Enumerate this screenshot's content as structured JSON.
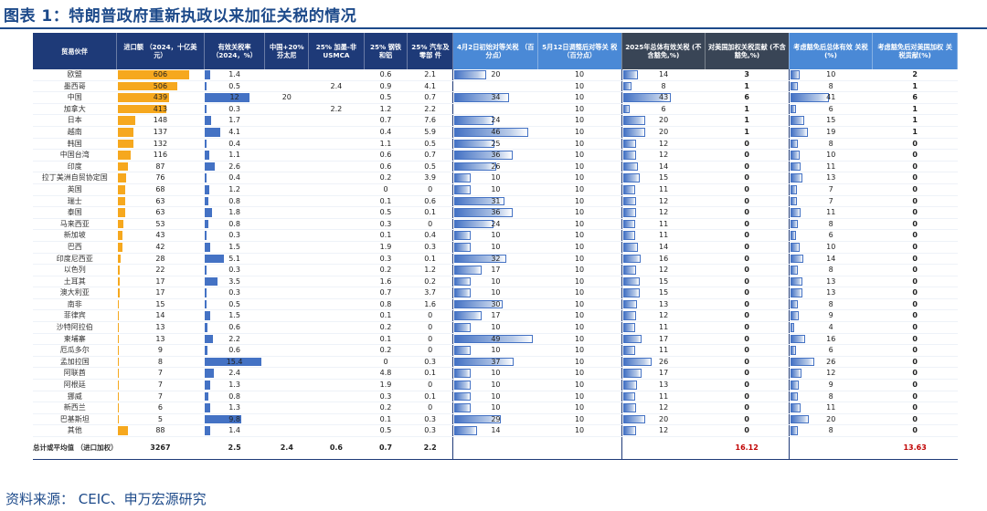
{
  "title": "图表 1：特朗普政府重新执政以来加征关税的情况",
  "source": "资料来源：   CEIC、申万宏源研究",
  "colors": {
    "header": "#1e3a78",
    "header_highlight": "#4a89d6",
    "header_dark": "#394556",
    "import_bar": "#f6a81e",
    "rate_bar": "#4472c4",
    "red_total": "#c00000"
  },
  "headers": [
    "贸易伙伴",
    "进口额 （2024，十亿美元）",
    "有效关税率 （2024，%）",
    "中国+20% 芬太尼",
    "25% 加墨-非 USMCA",
    "25% 钢铁 和铝",
    "25% 汽车及零部 件",
    "4月2日初始对等关税 （百分点）",
    "5月12日调整后对等关 税（百分点）",
    "2025年总体有效关税 (不含豁免,%)",
    "对美国加权关税贡献 (不含豁免,%)",
    "考虑豁免后总体有效 关税(%)",
    "考虑豁免后对美国加权 关税贡献(%)"
  ],
  "rows": [
    {
      "name": "欧盟",
      "imp": "606",
      "eff": "1.4",
      "cn": "",
      "mx": "",
      "st": "0.6",
      "au": "2.1",
      "ini": "20",
      "adj": "10",
      "tot": "14",
      "con": "3",
      "texe": "10",
      "cexe": "2"
    },
    {
      "name": "墨西哥",
      "imp": "506",
      "eff": "0.5",
      "cn": "",
      "mx": "2.4",
      "st": "0.9",
      "au": "4.1",
      "ini": "",
      "adj": "10",
      "tot": "8",
      "con": "1",
      "texe": "8",
      "cexe": "1"
    },
    {
      "name": "中国",
      "imp": "439",
      "eff": "12",
      "cn": "20",
      "mx": "",
      "st": "0.5",
      "au": "0.7",
      "ini": "34",
      "adj": "10",
      "tot": "43",
      "con": "6",
      "texe": "41",
      "cexe": "6"
    },
    {
      "name": "加拿大",
      "imp": "413",
      "eff": "0.3",
      "cn": "",
      "mx": "2.2",
      "st": "1.2",
      "au": "2.2",
      "ini": "",
      "adj": "10",
      "tot": "6",
      "con": "1",
      "texe": "6",
      "cexe": "1"
    },
    {
      "name": "日本",
      "imp": "148",
      "eff": "1.7",
      "cn": "",
      "mx": "",
      "st": "0.7",
      "au": "7.6",
      "ini": "24",
      "adj": "10",
      "tot": "20",
      "con": "1",
      "texe": "15",
      "cexe": "1"
    },
    {
      "name": "越南",
      "imp": "137",
      "eff": "4.1",
      "cn": "",
      "mx": "",
      "st": "0.4",
      "au": "5.9",
      "ini": "46",
      "adj": "10",
      "tot": "20",
      "con": "1",
      "texe": "19",
      "cexe": "1"
    },
    {
      "name": "韩国",
      "imp": "132",
      "eff": "0.4",
      "cn": "",
      "mx": "",
      "st": "1.1",
      "au": "0.5",
      "ini": "25",
      "adj": "10",
      "tot": "12",
      "con": "0",
      "texe": "8",
      "cexe": "0"
    },
    {
      "name": "中国台湾",
      "imp": "116",
      "eff": "1.1",
      "cn": "",
      "mx": "",
      "st": "0.6",
      "au": "0.7",
      "ini": "36",
      "adj": "10",
      "tot": "12",
      "con": "0",
      "texe": "10",
      "cexe": "0"
    },
    {
      "name": "印度",
      "imp": "87",
      "eff": "2.6",
      "cn": "",
      "mx": "",
      "st": "0.6",
      "au": "0.5",
      "ini": "26",
      "adj": "10",
      "tot": "14",
      "con": "0",
      "texe": "11",
      "cexe": "0"
    },
    {
      "name": "拉丁美洲自贸协定国",
      "imp": "76",
      "eff": "0.4",
      "cn": "",
      "mx": "",
      "st": "0.2",
      "au": "3.9",
      "ini": "10",
      "adj": "10",
      "tot": "15",
      "con": "0",
      "texe": "13",
      "cexe": "0"
    },
    {
      "name": "英国",
      "imp": "68",
      "eff": "1.2",
      "cn": "",
      "mx": "",
      "st": "0",
      "au": "0",
      "ini": "10",
      "adj": "10",
      "tot": "11",
      "con": "0",
      "texe": "7",
      "cexe": "0"
    },
    {
      "name": "瑞士",
      "imp": "63",
      "eff": "0.8",
      "cn": "",
      "mx": "",
      "st": "0.1",
      "au": "0.6",
      "ini": "31",
      "adj": "10",
      "tot": "12",
      "con": "0",
      "texe": "7",
      "cexe": "0"
    },
    {
      "name": "泰国",
      "imp": "63",
      "eff": "1.8",
      "cn": "",
      "mx": "",
      "st": "0.5",
      "au": "0.1",
      "ini": "36",
      "adj": "10",
      "tot": "12",
      "con": "0",
      "texe": "11",
      "cexe": "0"
    },
    {
      "name": "马来西亚",
      "imp": "53",
      "eff": "0.8",
      "cn": "",
      "mx": "",
      "st": "0.3",
      "au": "0",
      "ini": "24",
      "adj": "10",
      "tot": "11",
      "con": "0",
      "texe": "8",
      "cexe": "0"
    },
    {
      "name": "新加坡",
      "imp": "43",
      "eff": "0.3",
      "cn": "",
      "mx": "",
      "st": "0.1",
      "au": "0.4",
      "ini": "10",
      "adj": "10",
      "tot": "11",
      "con": "0",
      "texe": "6",
      "cexe": "0"
    },
    {
      "name": "巴西",
      "imp": "42",
      "eff": "1.5",
      "cn": "",
      "mx": "",
      "st": "1.9",
      "au": "0.3",
      "ini": "10",
      "adj": "10",
      "tot": "14",
      "con": "0",
      "texe": "10",
      "cexe": "0"
    },
    {
      "name": "印度尼西亚",
      "imp": "28",
      "eff": "5.1",
      "cn": "",
      "mx": "",
      "st": "0.3",
      "au": "0.1",
      "ini": "32",
      "adj": "10",
      "tot": "16",
      "con": "0",
      "texe": "14",
      "cexe": "0"
    },
    {
      "name": "以色列",
      "imp": "22",
      "eff": "0.3",
      "cn": "",
      "mx": "",
      "st": "0.2",
      "au": "1.2",
      "ini": "17",
      "adj": "10",
      "tot": "12",
      "con": "0",
      "texe": "8",
      "cexe": "0"
    },
    {
      "name": "土耳其",
      "imp": "17",
      "eff": "3.5",
      "cn": "",
      "mx": "",
      "st": "1.6",
      "au": "0.2",
      "ini": "10",
      "adj": "10",
      "tot": "15",
      "con": "0",
      "texe": "13",
      "cexe": "0"
    },
    {
      "name": "澳大利亚",
      "imp": "17",
      "eff": "0.3",
      "cn": "",
      "mx": "",
      "st": "0.7",
      "au": "3.7",
      "ini": "10",
      "adj": "10",
      "tot": "15",
      "con": "0",
      "texe": "13",
      "cexe": "0"
    },
    {
      "name": "南非",
      "imp": "15",
      "eff": "0.5",
      "cn": "",
      "mx": "",
      "st": "0.8",
      "au": "1.6",
      "ini": "30",
      "adj": "10",
      "tot": "13",
      "con": "0",
      "texe": "8",
      "cexe": "0"
    },
    {
      "name": "菲律宾",
      "imp": "14",
      "eff": "1.5",
      "cn": "",
      "mx": "",
      "st": "0.1",
      "au": "0",
      "ini": "17",
      "adj": "10",
      "tot": "12",
      "con": "0",
      "texe": "9",
      "cexe": "0"
    },
    {
      "name": "沙特阿拉伯",
      "imp": "13",
      "eff": "0.6",
      "cn": "",
      "mx": "",
      "st": "0.2",
      "au": "0",
      "ini": "10",
      "adj": "10",
      "tot": "11",
      "con": "0",
      "texe": "4",
      "cexe": "0"
    },
    {
      "name": "柬埔寨",
      "imp": "13",
      "eff": "2.2",
      "cn": "",
      "mx": "",
      "st": "0.1",
      "au": "0",
      "ini": "49",
      "adj": "10",
      "tot": "17",
      "con": "0",
      "texe": "16",
      "cexe": "0"
    },
    {
      "name": "厄瓜多尔",
      "imp": "9",
      "eff": "0.6",
      "cn": "",
      "mx": "",
      "st": "0.2",
      "au": "0",
      "ini": "10",
      "adj": "10",
      "tot": "11",
      "con": "0",
      "texe": "6",
      "cexe": "0"
    },
    {
      "name": "孟加拉国",
      "imp": "8",
      "eff": "15.4",
      "cn": "",
      "mx": "",
      "st": "0",
      "au": "0.3",
      "ini": "37",
      "adj": "10",
      "tot": "26",
      "con": "0",
      "texe": "26",
      "cexe": "0"
    },
    {
      "name": "阿联酋",
      "imp": "7",
      "eff": "2.4",
      "cn": "",
      "mx": "",
      "st": "4.8",
      "au": "0.1",
      "ini": "10",
      "adj": "10",
      "tot": "17",
      "con": "0",
      "texe": "12",
      "cexe": "0"
    },
    {
      "name": "阿根廷",
      "imp": "7",
      "eff": "1.3",
      "cn": "",
      "mx": "",
      "st": "1.9",
      "au": "0",
      "ini": "10",
      "adj": "10",
      "tot": "13",
      "con": "0",
      "texe": "9",
      "cexe": "0"
    },
    {
      "name": "挪威",
      "imp": "7",
      "eff": "0.8",
      "cn": "",
      "mx": "",
      "st": "0.3",
      "au": "0.1",
      "ini": "10",
      "adj": "10",
      "tot": "11",
      "con": "0",
      "texe": "8",
      "cexe": "0"
    },
    {
      "name": "新西兰",
      "imp": "6",
      "eff": "1.3",
      "cn": "",
      "mx": "",
      "st": "0.2",
      "au": "0",
      "ini": "10",
      "adj": "10",
      "tot": "12",
      "con": "0",
      "texe": "11",
      "cexe": "0"
    },
    {
      "name": "巴基斯坦",
      "imp": "5",
      "eff": "9.8",
      "cn": "",
      "mx": "",
      "st": "0.1",
      "au": "0.3",
      "ini": "29",
      "adj": "10",
      "tot": "20",
      "con": "0",
      "texe": "20",
      "cexe": "0"
    },
    {
      "name": "其他",
      "imp": "88",
      "eff": "1.4",
      "cn": "",
      "mx": "",
      "st": "0.5",
      "au": "0.3",
      "ini": "14",
      "adj": "10",
      "tot": "12",
      "con": "0",
      "texe": "8",
      "cexe": "0"
    }
  ],
  "total": {
    "label": "总计或平均值 （进口加权）",
    "imp": "3267",
    "eff": "2.5",
    "cn": "2.4",
    "mx": "0.6",
    "st": "0.7",
    "au": "2.2",
    "ini": "",
    "adj": "",
    "tot": "",
    "con": "16.12",
    "texe": "",
    "cexe": "13.63"
  },
  "bar_scales": {
    "imp": 606,
    "eff": 15.4,
    "ini": 49,
    "tot": 43,
    "texe": 41
  }
}
